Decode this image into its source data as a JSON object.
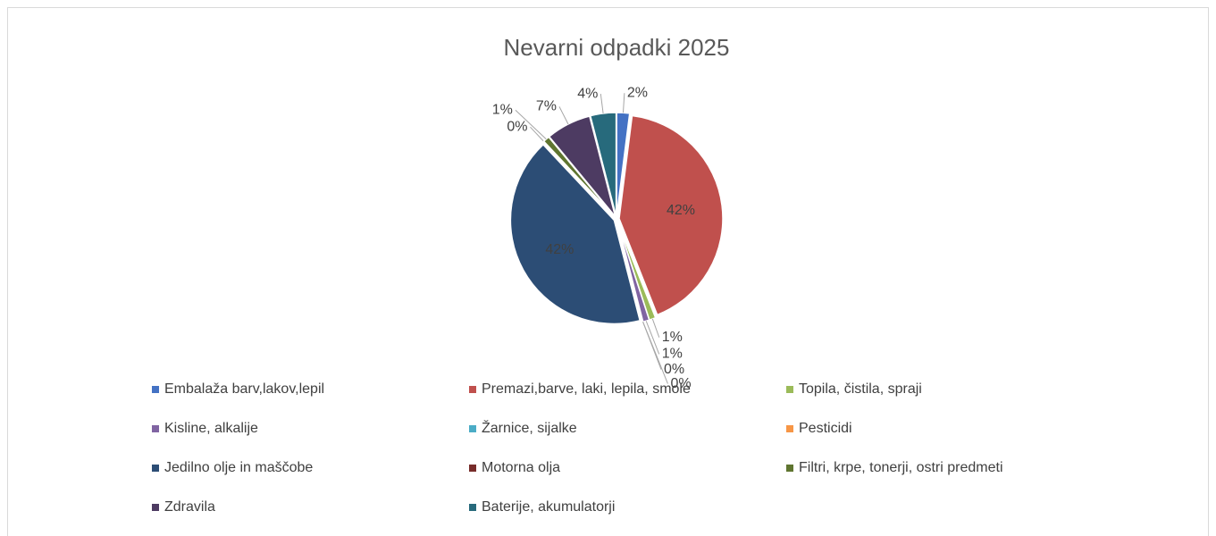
{
  "chart_data": {
    "type": "pie",
    "title": "Nevarni  odpadki 2025",
    "categories": [
      "Embalaža barv,lakov,lepil",
      "Premazi,barve, laki, lepila, smole",
      "Topila, čistila, spraji",
      "Kisline, alkalije",
      "Žarnice, sijalke",
      "Pesticidi",
      "Jedilno olje in maščobe",
      "Motorna olja",
      "Filtri, krpe, tonerji, ostri predmeti",
      "Zdravila",
      "Baterije, akumulatorji"
    ],
    "values": [
      2,
      42,
      1,
      1,
      0,
      0,
      42,
      0,
      1,
      7,
      4
    ],
    "value_labels": [
      "2%",
      "42%",
      "1%",
      "1%",
      "0%",
      "0%",
      "42%",
      "0%",
      "1%",
      "7%",
      "4%"
    ],
    "colors": [
      "#4472c4",
      "#c0504d",
      "#9bbb59",
      "#8064a2",
      "#4bacc6",
      "#f79646",
      "#2c4d75",
      "#772c2a",
      "#5f7530",
      "#4d3b62",
      "#276a7c"
    ],
    "legend": "bottom"
  }
}
